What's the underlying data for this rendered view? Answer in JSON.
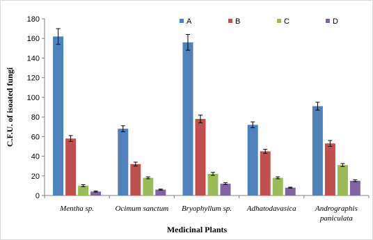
{
  "chart_data": {
    "type": "bar",
    "categories": [
      [
        "Mentha sp."
      ],
      [
        "Ocimum sanctum"
      ],
      [
        "Bryophyllum sp."
      ],
      [
        "Adhatodavasica"
      ],
      [
        "Andrographis",
        "paniculata"
      ]
    ],
    "series": [
      {
        "name": "A",
        "color": "#4f81bd",
        "values": [
          162,
          68,
          156,
          72,
          91
        ],
        "errors": [
          8,
          3,
          8,
          3,
          4
        ]
      },
      {
        "name": "B",
        "color": "#c0504d",
        "values": [
          58,
          32,
          78,
          45,
          53
        ],
        "errors": [
          3,
          2,
          4,
          2,
          3
        ]
      },
      {
        "name": "C",
        "color": "#9bbb59",
        "values": [
          10,
          18,
          22,
          18,
          31
        ],
        "errors": [
          1,
          1,
          1.5,
          1,
          1.5
        ]
      },
      {
        "name": "D",
        "color": "#8064a2",
        "values": [
          4,
          6,
          12,
          8,
          15
        ],
        "errors": [
          0.5,
          0.5,
          1,
          0.5,
          1
        ]
      }
    ],
    "xlabel": "Medicinal Plants",
    "ylabel": "C.F.U. of isoated fungi",
    "ylim": [
      0,
      180
    ],
    "yticks": [
      0,
      20,
      40,
      60,
      80,
      100,
      120,
      140,
      160,
      180
    ],
    "legend_position": "top-right",
    "grid": false
  }
}
